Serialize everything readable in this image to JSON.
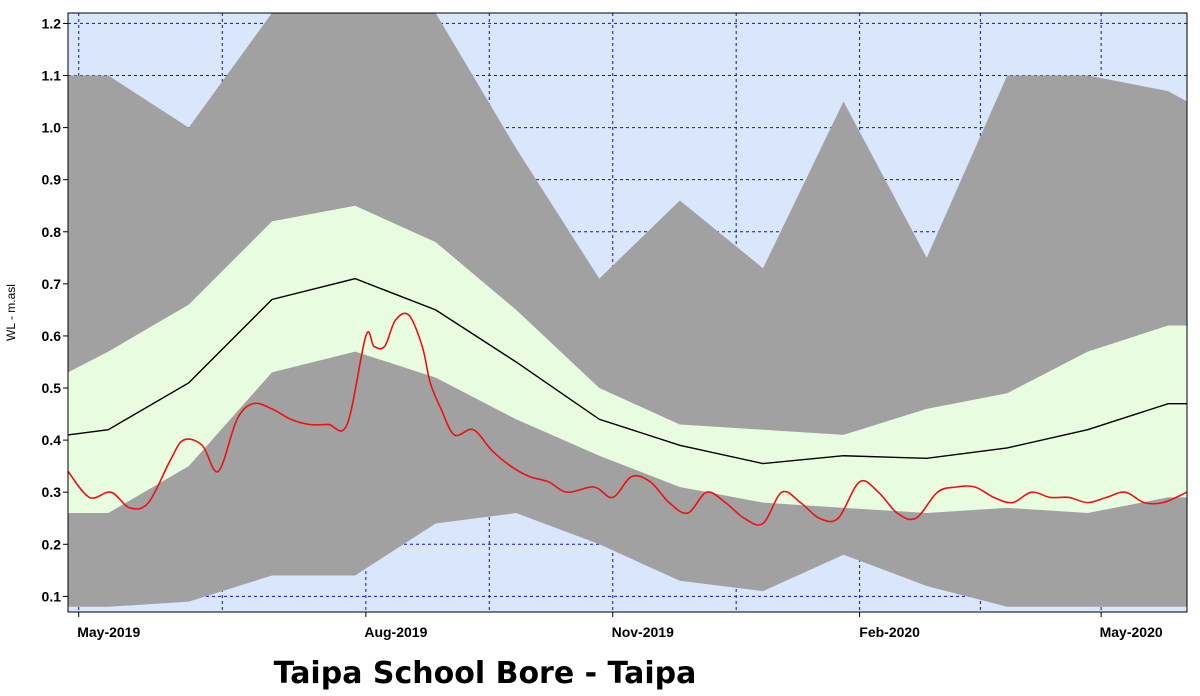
{
  "chart_data": {
    "type": "area",
    "title": "Taipa School Bore - Taipa",
    "xlabel": "",
    "ylabel": "WL - m.asl",
    "ylim": [
      0.07,
      1.22
    ],
    "xlim": [
      "2019-04-12",
      "2020-06-02"
    ],
    "x_ticks": [
      {
        "date": "2019-04-16",
        "label": "May-2019"
      },
      {
        "date": "2019-08-01",
        "label": "Aug-2019"
      },
      {
        "date": "2019-11-01",
        "label": "Nov-2019"
      },
      {
        "date": "2020-02-01",
        "label": "Feb-2020"
      },
      {
        "date": "2020-05-01",
        "label": "May-2020"
      }
    ],
    "y_ticks": [
      0.1,
      0.2,
      0.3,
      0.4,
      0.5,
      0.6,
      0.7,
      0.8,
      0.9,
      1.0,
      1.1,
      1.2
    ],
    "y_tick_labels": [
      "0.1",
      "0.2",
      "0.3",
      "0.4",
      "0.5",
      "0.6",
      "0.7",
      "0.8",
      "0.9",
      "1.0",
      "1.1",
      "1.2"
    ],
    "grid": true,
    "colors": {
      "plot_background": "#d9e6fb",
      "grid": "#1010dd",
      "outer_band": "#a1a1a1",
      "inner_band": "#e8fce0",
      "median": "#000000",
      "observed": "#ee1111"
    },
    "series": [
      {
        "role": "outer_band",
        "x": [
          "2019-04-12",
          "2019-04-27",
          "2019-05-27",
          "2019-06-27",
          "2019-07-28",
          "2019-08-27",
          "2019-09-26",
          "2019-10-27",
          "2019-11-26",
          "2019-12-27",
          "2020-01-26",
          "2020-02-26",
          "2020-03-27",
          "2020-04-26",
          "2020-05-26",
          "2020-06-02"
        ],
        "upper": [
          1.1,
          1.1,
          1.0,
          1.22,
          1.22,
          1.22,
          0.96,
          0.71,
          0.86,
          0.73,
          1.05,
          0.75,
          1.1,
          1.1,
          1.07,
          1.05
        ],
        "lower": [
          0.08,
          0.08,
          0.09,
          0.14,
          0.14,
          0.24,
          0.26,
          0.2,
          0.13,
          0.11,
          0.18,
          0.12,
          0.08,
          0.08,
          0.08,
          0.08
        ]
      },
      {
        "role": "inner_band",
        "x": [
          "2019-04-12",
          "2019-04-27",
          "2019-05-27",
          "2019-06-27",
          "2019-07-28",
          "2019-08-27",
          "2019-09-26",
          "2019-10-27",
          "2019-11-26",
          "2019-12-27",
          "2020-01-26",
          "2020-02-26",
          "2020-03-27",
          "2020-04-26",
          "2020-05-26",
          "2020-06-02"
        ],
        "upper": [
          0.53,
          0.57,
          0.66,
          0.82,
          0.85,
          0.78,
          0.65,
          0.5,
          0.43,
          0.42,
          0.41,
          0.46,
          0.49,
          0.57,
          0.62,
          0.62
        ],
        "lower": [
          0.26,
          0.26,
          0.35,
          0.53,
          0.57,
          0.52,
          0.44,
          0.37,
          0.31,
          0.28,
          0.27,
          0.26,
          0.27,
          0.26,
          0.29,
          0.29
        ]
      },
      {
        "role": "median",
        "x": [
          "2019-04-12",
          "2019-04-27",
          "2019-05-27",
          "2019-06-27",
          "2019-07-28",
          "2019-08-27",
          "2019-09-26",
          "2019-10-27",
          "2019-11-26",
          "2019-12-27",
          "2020-01-26",
          "2020-02-26",
          "2020-03-27",
          "2020-04-26",
          "2020-05-26",
          "2020-06-02"
        ],
        "y": [
          0.41,
          0.42,
          0.51,
          0.67,
          0.71,
          0.65,
          0.55,
          0.44,
          0.39,
          0.355,
          0.37,
          0.365,
          0.385,
          0.42,
          0.47,
          0.47
        ]
      },
      {
        "role": "observed",
        "x": [
          "2019-04-12",
          "2019-04-20",
          "2019-04-28",
          "2019-05-05",
          "2019-05-12",
          "2019-05-20",
          "2019-05-25",
          "2019-06-01",
          "2019-06-07",
          "2019-06-14",
          "2019-06-20",
          "2019-06-27",
          "2019-07-04",
          "2019-07-11",
          "2019-07-18",
          "2019-07-25",
          "2019-08-01",
          "2019-08-04",
          "2019-08-08",
          "2019-08-12",
          "2019-08-17",
          "2019-08-22",
          "2019-08-25",
          "2019-08-29",
          "2019-09-03",
          "2019-09-10",
          "2019-09-17",
          "2019-09-24",
          "2019-10-01",
          "2019-10-08",
          "2019-10-15",
          "2019-10-25",
          "2019-11-01",
          "2019-11-08",
          "2019-11-15",
          "2019-11-22",
          "2019-11-29",
          "2019-12-06",
          "2019-12-13",
          "2019-12-20",
          "2019-12-27",
          "2020-01-03",
          "2020-01-10",
          "2020-01-17",
          "2020-01-24",
          "2020-02-01",
          "2020-02-08",
          "2020-02-15",
          "2020-02-22",
          "2020-03-01",
          "2020-03-08",
          "2020-03-15",
          "2020-03-22",
          "2020-03-29",
          "2020-04-05",
          "2020-04-12",
          "2020-04-19",
          "2020-04-26",
          "2020-05-03",
          "2020-05-10",
          "2020-05-17",
          "2020-05-24",
          "2020-06-02"
        ],
        "y": [
          0.34,
          0.29,
          0.3,
          0.27,
          0.28,
          0.36,
          0.4,
          0.39,
          0.34,
          0.44,
          0.47,
          0.46,
          0.44,
          0.43,
          0.43,
          0.43,
          0.6,
          0.58,
          0.58,
          0.63,
          0.64,
          0.58,
          0.51,
          0.46,
          0.41,
          0.42,
          0.38,
          0.35,
          0.33,
          0.32,
          0.3,
          0.31,
          0.29,
          0.33,
          0.32,
          0.28,
          0.26,
          0.3,
          0.28,
          0.25,
          0.24,
          0.3,
          0.28,
          0.25,
          0.25,
          0.32,
          0.3,
          0.26,
          0.25,
          0.3,
          0.31,
          0.31,
          0.29,
          0.28,
          0.3,
          0.29,
          0.29,
          0.28,
          0.29,
          0.3,
          0.28,
          0.28,
          0.3
        ]
      }
    ]
  }
}
